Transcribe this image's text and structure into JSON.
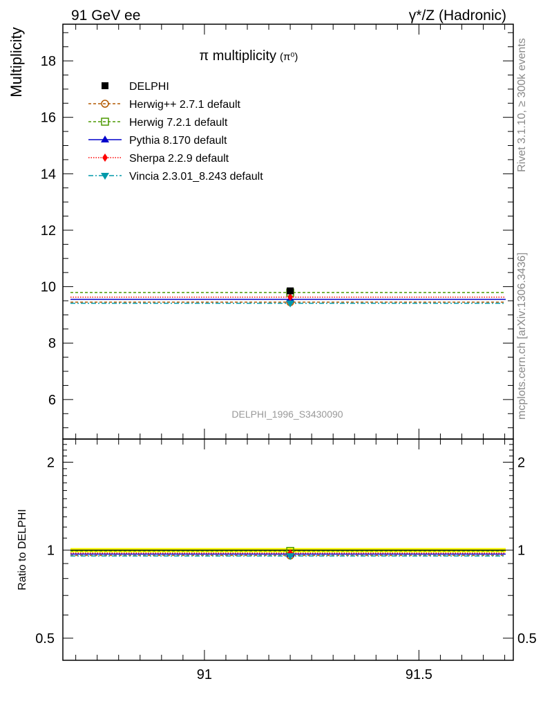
{
  "header": {
    "left": "91 GeV ee",
    "right": "γ*/Z (Hadronic)"
  },
  "side_labels": {
    "rivet": "Rivet 3.1.10, ≥ 300k events",
    "mcplots": "mcplots.cern.ch [arXiv:1306.3436]"
  },
  "watermark": "DELPHI_1996_S3430090",
  "chart_data": [
    {
      "type": "line",
      "panel": "main",
      "title": "π multiplicity",
      "title_suffix": "(π⁰)",
      "ylabel": "Multiplicity",
      "xlim": [
        90.67,
        91.72
      ],
      "ylim": [
        4.6,
        19.3
      ],
      "yticks": [
        6,
        8,
        10,
        12,
        14,
        16,
        18
      ],
      "ytick_labels": [
        "6",
        "8",
        "10",
        "12",
        "14",
        "16",
        "18"
      ],
      "xticks": [
        91,
        91.5
      ],
      "data": {
        "name": "DELPHI",
        "x": 91.2,
        "y": 9.85,
        "err": 0.06
      },
      "series": [
        {
          "name": "Herwig++ 2.7.1 default",
          "value": 9.45,
          "x": 91.2,
          "color": "#b35900",
          "dash": "4,3",
          "marker": "circle-open"
        },
        {
          "name": "Herwig 7.2.1 default",
          "value": 9.79,
          "x": 91.2,
          "color": "#4c9900",
          "dash": "4,3",
          "marker": "square-open"
        },
        {
          "name": "Pythia 8.170 default",
          "value": 9.55,
          "x": 91.2,
          "color": "#0000cc",
          "dash": "",
          "marker": "triangle-up"
        },
        {
          "name": "Sherpa 2.2.9 default",
          "value": 9.63,
          "x": 91.2,
          "color": "#ff0000",
          "dash": "1.5,2",
          "marker": "diamond"
        },
        {
          "name": "Vincia 2.3.01_8.243 default",
          "value": 9.41,
          "x": 91.2,
          "color": "#0099aa",
          "dash": "7,3,2,3",
          "marker": "triangle-down"
        }
      ],
      "legend": [
        {
          "label": "DELPHI"
        },
        {
          "label": "Herwig++ 2.7.1 default"
        },
        {
          "label": "Herwig 7.2.1 default"
        },
        {
          "label": "Pythia 8.170 default"
        },
        {
          "label": "Sherpa 2.2.9 default"
        },
        {
          "label": "Vincia 2.3.01_8.243 default"
        }
      ]
    },
    {
      "type": "line",
      "panel": "ratio",
      "ylabel": "Ratio to DELPHI",
      "xlim": [
        90.67,
        91.72
      ],
      "ylim": [
        0.42,
        2.4
      ],
      "log_y": true,
      "yticks": [
        0.5,
        1,
        2
      ],
      "ytick_labels": [
        "0.5",
        "1",
        "2"
      ],
      "xticks": [
        91,
        91.5
      ],
      "xtick_labels": [
        "91",
        "91.5"
      ],
      "band": {
        "value": 1.0,
        "err": 0.006,
        "color": "#ffff00"
      },
      "series": [
        {
          "name": "Herwig++ 2.7.1 default",
          "value": 0.959
        },
        {
          "name": "Herwig 7.2.1 default",
          "value": 0.994
        },
        {
          "name": "Pythia 8.170 default",
          "value": 0.97
        },
        {
          "name": "Sherpa 2.2.9 default",
          "value": 0.977
        },
        {
          "name": "Vincia 2.3.01_8.243 default",
          "value": 0.955
        }
      ]
    }
  ]
}
